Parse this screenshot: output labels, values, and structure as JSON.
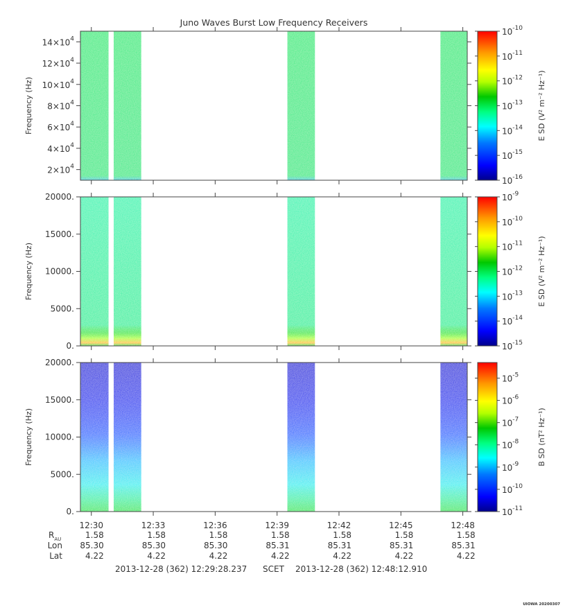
{
  "chart_data": {
    "type": "heatmap",
    "title": "Juno Waves Burst Low Frequency Receivers",
    "x": {
      "start_time": "12:29:28.237",
      "end_time": "12:48:12.910",
      "ticks": [
        "12:30",
        "12:33",
        "12:36",
        "12:39",
        "12:42",
        "12:45",
        "12:48"
      ]
    },
    "ephemeris": {
      "rows": [
        {
          "label": "R",
          "subscript": "AU",
          "values": [
            "1.58",
            "1.58",
            "1.58",
            "1.58",
            "1.58",
            "1.58",
            "1.58"
          ]
        },
        {
          "label": "Lon",
          "values": [
            "85.30",
            "85.30",
            "85.30",
            "85.31",
            "85.31",
            "85.31",
            "85.31"
          ]
        },
        {
          "label": "Lat",
          "values": [
            "4.22",
            "4.22",
            "4.22",
            "4.22",
            "4.22",
            "4.22",
            "4.22"
          ]
        }
      ],
      "start_label": "2013-12-28 (362) 12:29:28.237",
      "scet_label": "SCET",
      "end_label": "2013-12-28 (362) 12:48:12.910"
    },
    "bursts": [
      {
        "start": "12:29:28",
        "end": "12:30:50"
      },
      {
        "start": "12:31:05",
        "end": "12:32:25"
      },
      {
        "start": "12:39:30",
        "end": "12:40:50"
      },
      {
        "start": "12:46:55",
        "end": "12:48:13"
      }
    ],
    "panels": [
      {
        "ylabel": "Frequency (Hz)",
        "ylim": [
          10000,
          150000
        ],
        "y_ticks": [
          {
            "value": 20000,
            "mant": "2×10",
            "exp": "4"
          },
          {
            "value": 40000,
            "mant": "4×10",
            "exp": "4"
          },
          {
            "value": 60000,
            "mant": "6×10",
            "exp": "4"
          },
          {
            "value": 80000,
            "mant": "8×10",
            "exp": "4"
          },
          {
            "value": 100000,
            "mant": "10×10",
            "exp": "4"
          },
          {
            "value": 120000,
            "mant": "12×10",
            "exp": "4"
          },
          {
            "value": 140000,
            "mant": "14×10",
            "exp": "4"
          }
        ],
        "colorbar": {
          "label": "E SD (V² m⁻² Hz⁻¹)",
          "log_range": [
            -16,
            -10
          ],
          "ticks": [
            {
              "mant": "10",
              "exp": "-16"
            },
            {
              "mant": "10",
              "exp": "-15"
            },
            {
              "mant": "10",
              "exp": "-14"
            },
            {
              "mant": "10",
              "exp": "-13"
            },
            {
              "mant": "10",
              "exp": "-12"
            },
            {
              "mant": "10",
              "exp": "-11"
            },
            {
              "mant": "10",
              "exp": "-10"
            }
          ]
        }
      },
      {
        "ylabel": "Frequency (Hz)",
        "ylim": [
          0,
          20000
        ],
        "y_ticks": [
          {
            "value": 0,
            "label": "0."
          },
          {
            "value": 5000,
            "label": "5000."
          },
          {
            "value": 10000,
            "label": "10000."
          },
          {
            "value": 15000,
            "label": "15000."
          },
          {
            "value": 20000,
            "label": "20000."
          }
        ],
        "colorbar": {
          "label": "E SD (V² m⁻² Hz⁻¹)",
          "log_range": [
            -15,
            -9
          ],
          "ticks": [
            {
              "mant": "10",
              "exp": "-15"
            },
            {
              "mant": "10",
              "exp": "-14"
            },
            {
              "mant": "10",
              "exp": "-13"
            },
            {
              "mant": "10",
              "exp": "-12"
            },
            {
              "mant": "10",
              "exp": "-11"
            },
            {
              "mant": "10",
              "exp": "-10"
            },
            {
              "mant": "10",
              "exp": "-9"
            }
          ]
        }
      },
      {
        "ylabel": "Frequency (Hz)",
        "ylim": [
          0,
          20000
        ],
        "y_ticks": [
          {
            "value": 0,
            "label": "0."
          },
          {
            "value": 5000,
            "label": "5000."
          },
          {
            "value": 10000,
            "label": "10000."
          },
          {
            "value": 15000,
            "label": "15000."
          },
          {
            "value": 20000,
            "label": "20000."
          }
        ],
        "colorbar": {
          "label": "B SD (nT² Hz⁻¹)",
          "log_range": [
            -11,
            -4.3
          ],
          "ticks": [
            {
              "mant": "10",
              "exp": "-11"
            },
            {
              "mant": "10",
              "exp": "-10"
            },
            {
              "mant": "10",
              "exp": "-9"
            },
            {
              "mant": "10",
              "exp": "-8"
            },
            {
              "mant": "10",
              "exp": "-7"
            },
            {
              "mant": "10",
              "exp": "-6"
            },
            {
              "mant": "10",
              "exp": "-5"
            }
          ]
        }
      }
    ],
    "colors": {
      "scale": [
        "#00008c",
        "#0000ff",
        "#0078ff",
        "#00ffff",
        "#00ff80",
        "#00c800",
        "#b4ff00",
        "#ffff00",
        "#ff9600",
        "#ff0000"
      ],
      "panel_fill": [
        "#2ee878",
        "#1ef4b4",
        "#1020e6"
      ]
    }
  },
  "footer": {
    "stamp": "UIOWA 20200307"
  }
}
